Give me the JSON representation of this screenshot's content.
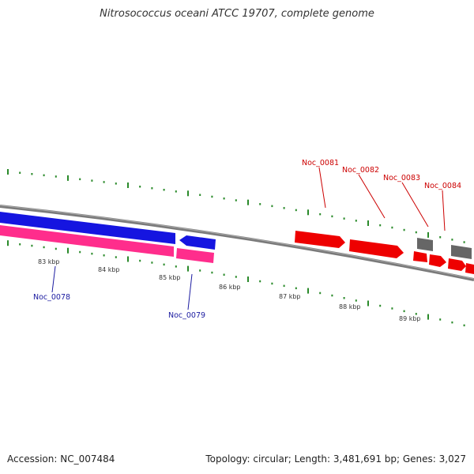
{
  "title": "Nitrosococcus oceani ATCC 19707, complete genome",
  "footer": {
    "accession": "Accession: NC_007484",
    "summary": "Topology: circular; Length: 3,481,691 bp; Genes: 3,027"
  },
  "colors": {
    "backbone": "#7a7a7a",
    "tick": "#2a8a2a",
    "forward_gene": "#1515e0",
    "forward_rna": "#ff2d8c",
    "reverse_gene": "#ee0000",
    "pseudo_gene": "#666666",
    "label_forward": "#1a1aa0",
    "label_reverse": "#cc0000"
  },
  "ticks": [
    "83 kbp",
    "84 kbp",
    "85 kbp",
    "86 kbp",
    "87 kbp",
    "88 kbp",
    "89 kbp"
  ],
  "gene_labels": {
    "noc_0078": "Noc_0078",
    "noc_0079": "Noc_0079",
    "noc_0081": "Noc_0081",
    "noc_0082": "Noc_0082",
    "noc_0083": "Noc_0083",
    "noc_0084": "Noc_0084"
  }
}
